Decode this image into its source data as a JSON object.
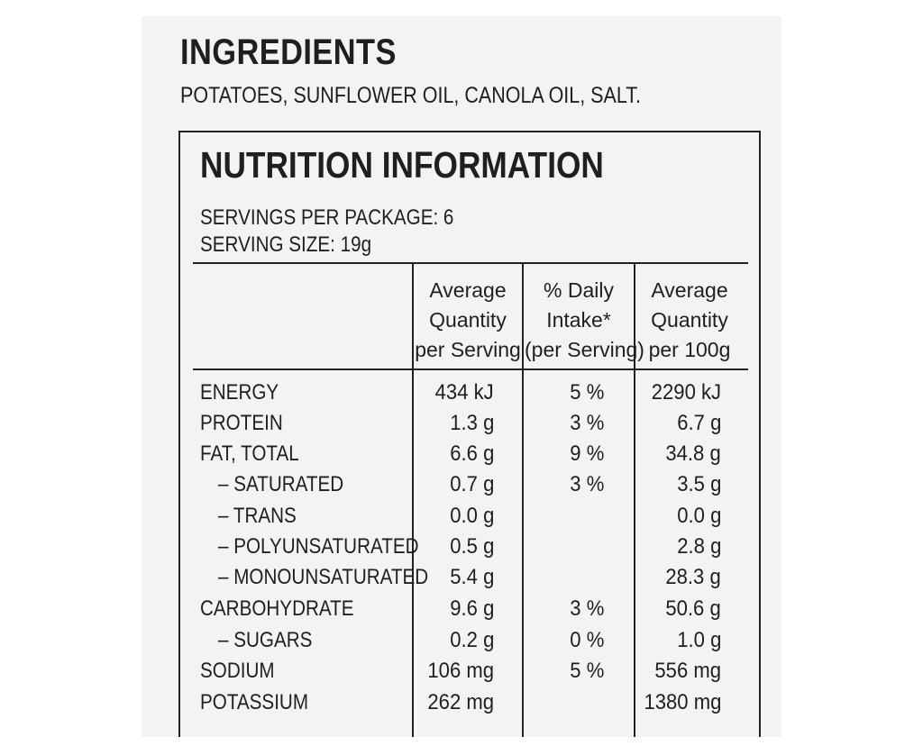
{
  "ingredients": {
    "title": "INGREDIENTS",
    "text": "POTATOES, SUNFLOWER OIL, CANOLA OIL, SALT."
  },
  "nutrition": {
    "title": "NUTRITION INFORMATION",
    "servings_per_package": "SERVINGS PER PACKAGE: 6",
    "serving_size": "SERVING SIZE: 19g",
    "columns": [
      [
        "Average",
        "Quantity",
        "per Serving"
      ],
      [
        "% Daily",
        "Intake*",
        "(per Serving)"
      ],
      [
        "Average",
        "Quantity",
        "per 100g"
      ]
    ],
    "rows": [
      {
        "label": "ENERGY",
        "per_serving": "434 kJ",
        "daily_intake": "5 %",
        "per_100g": "2290 kJ"
      },
      {
        "label": "PROTEIN",
        "per_serving": "1.3 g",
        "daily_intake": "3 %",
        "per_100g": "6.7 g"
      },
      {
        "label": "FAT, TOTAL",
        "per_serving": "6.6 g",
        "daily_intake": "9 %",
        "per_100g": "34.8 g"
      },
      {
        "label": "– SATURATED",
        "per_serving": "0.7 g",
        "daily_intake": "3 %",
        "per_100g": "3.5 g"
      },
      {
        "label": "– TRANS",
        "per_serving": "0.0 g",
        "daily_intake": "",
        "per_100g": "0.0 g"
      },
      {
        "label": "– POLYUNSATURATED",
        "per_serving": "0.5 g",
        "daily_intake": "",
        "per_100g": "2.8 g"
      },
      {
        "label": "– MONOUNSATURATED",
        "per_serving": "5.4 g",
        "daily_intake": "",
        "per_100g": "28.3 g"
      },
      {
        "label": "CARBOHYDRATE",
        "per_serving": "9.6 g",
        "daily_intake": "3 %",
        "per_100g": "50.6 g"
      },
      {
        "label": "– SUGARS",
        "per_serving": "0.2 g",
        "daily_intake": "0 %",
        "per_100g": "1.0 g"
      },
      {
        "label": "SODIUM",
        "per_serving": "106 mg",
        "daily_intake": "5 %",
        "per_100g": "556 mg"
      },
      {
        "label": "POTASSIUM",
        "per_serving": "262 mg",
        "daily_intake": "",
        "per_100g": "1380 mg"
      }
    ]
  }
}
